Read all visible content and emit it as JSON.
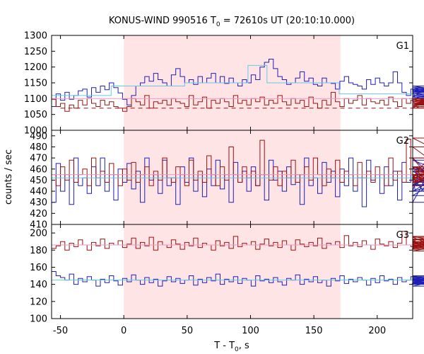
{
  "chart_data": {
    "type": "line",
    "title": {
      "prefix": "KONUS-WIND 990516 T",
      "sub": "0",
      "suffix": " = 72610s UT (20:10:10.000)"
    },
    "xlabel": {
      "prefix": "T - T",
      "sub": "0",
      "suffix": ", s"
    },
    "ylabel": "counts / sec",
    "x_range": [
      -57,
      228
    ],
    "x_ticks": [
      -50,
      0,
      50,
      100,
      150,
      200
    ],
    "shaded_interval": [
      0,
      171
    ],
    "colors": {
      "blue": "#1f1fb4",
      "red": "#9b1111",
      "cyan": "#67c7e6",
      "pink": "#e89ac4",
      "shade": "#ffe4e6"
    },
    "panels": [
      {
        "label": "G1",
        "ylim": [
          1000,
          1300
        ],
        "y_ticks": [
          1000,
          1050,
          1100,
          1150,
          1200,
          1250,
          1300
        ],
        "series": [
          {
            "color": "blue",
            "x0": -57,
            "dt": 3.5,
            "values": [
              1075,
              1115,
              1095,
              1120,
              1098,
              1110,
              1125,
              1130,
              1105,
              1135,
              1120,
              1140,
              1128,
              1150,
              1135,
              1118,
              1098,
              1080,
              1110,
              1140,
              1150,
              1170,
              1155,
              1180,
              1160,
              1150,
              1140,
              1175,
              1195,
              1170,
              1150,
              1160,
              1145,
              1170,
              1150,
              1165,
              1180,
              1150,
              1170,
              1148,
              1165,
              1150,
              1140,
              1160,
              1150,
              1175,
              1160,
              1200,
              1215,
              1225,
              1195,
              1170,
              1160,
              1145,
              1150,
              1165,
              1185,
              1155,
              1165,
              1145,
              1140,
              1165,
              1150,
              1148,
              1130,
              1155,
              1170,
              1150,
              1145,
              1140,
              1130,
              1160,
              1145,
              1165,
              1150,
              1140,
              1150,
              1185,
              1150,
              1120,
              1110,
              1130,
              1098,
              1105,
              1125,
              1120,
              1135,
              1115,
              1128,
              1115,
              1135,
              1125,
              1100,
              1110,
              1130,
              1120,
              1140,
              1110,
              1105,
              1120,
              1130,
              1110
            ]
          },
          {
            "color": "red",
            "x0": -57,
            "dt": 3.5,
            "values": [
              1098,
              1075,
              1085,
              1060,
              1080,
              1070,
              1095,
              1080,
              1100,
              1085,
              1075,
              1095,
              1080,
              1090,
              1075,
              1070,
              1060,
              1075,
              1100,
              1090,
              1080,
              1110,
              1070,
              1090,
              1085,
              1095,
              1080,
              1100,
              1090,
              1085,
              1075,
              1110,
              1080,
              1090,
              1105,
              1070,
              1095,
              1085,
              1100,
              1090,
              1075,
              1110,
              1085,
              1095,
              1080,
              1100,
              1090,
              1105,
              1080,
              1095,
              1085,
              1110,
              1090,
              1080,
              1100,
              1085,
              1095,
              1075,
              1105,
              1085,
              1070,
              1095,
              1080,
              1120,
              1090,
              1075,
              1100,
              1085,
              1095,
              1110,
              1080,
              1100,
              1090,
              1085,
              1095,
              1080,
              1105,
              1090,
              1075,
              1100,
              1085,
              1095,
              1080,
              1070,
              1090,
              1100,
              1080,
              1095,
              1085,
              1075,
              1100,
              1090,
              1080,
              1095,
              1085,
              1100,
              1080,
              1090,
              1085,
              1070,
              1080,
              1075
            ]
          },
          {
            "color": "cyan",
            "style": "step",
            "points": [
              [
                -57,
                1110
              ],
              [
                -10,
                1110
              ],
              [
                -10,
                1140
              ],
              [
                48,
                1140
              ],
              [
                48,
                1150
              ],
              [
                98,
                1150
              ],
              [
                98,
                1205
              ],
              [
                113,
                1205
              ],
              [
                113,
                1150
              ],
              [
                170,
                1150
              ],
              [
                170,
                1115
              ],
              [
                228,
                1115
              ]
            ]
          },
          {
            "color": "pink",
            "style": "step",
            "points": [
              [
                -57,
                1100
              ],
              [
                228,
                1100
              ]
            ]
          },
          {
            "color": "red",
            "style": "dashed",
            "points": [
              [
                -50,
                1070
              ],
              [
                228,
                1070
              ]
            ]
          }
        ]
      },
      {
        "label": "G2",
        "ylim": [
          410,
          495
        ],
        "y_ticks": [
          410,
          420,
          430,
          440,
          450,
          460,
          470,
          480,
          490
        ],
        "series": [
          {
            "color": "blue",
            "x0": -57,
            "dt": 3.5,
            "values": [
              430,
              465,
              440,
              455,
              428,
              470,
              445,
              452,
              438,
              462,
              445,
              470,
              440,
              455,
              432,
              460,
              448,
              465,
              442,
              458,
              430,
              470,
              450,
              455,
              438,
              468,
              445,
              452,
              428,
              462,
              448,
              470,
              440,
              455,
              435,
              460,
              445,
              468,
              442,
              455,
              430,
              466,
              448,
              458,
              440,
              462,
              445,
              455,
              432,
              468,
              450,
              458,
              440,
              462,
              446,
              455,
              428,
              470,
              445,
              452,
              438,
              466,
              448,
              458,
              435,
              460,
              445,
              470,
              440,
              452,
              426,
              468,
              450,
              455,
              438,
              462,
              445,
              458,
              432,
              466,
              448,
              455,
              440,
              462,
              445,
              452,
              430,
              470,
              446,
              458,
              440,
              462,
              448,
              455,
              436,
              468,
              445,
              452,
              440,
              460,
              448,
              455
            ]
          },
          {
            "color": "red",
            "x0": -57,
            "dt": 3.5,
            "values": [
              455,
              445,
              462,
              450,
              468,
              448,
              455,
              460,
              445,
              470,
              452,
              458,
              448,
              465,
              455,
              445,
              460,
              450,
              466,
              448,
              455,
              462,
              445,
              458,
              450,
              470,
              452,
              448,
              462,
              455,
              445,
              468,
              450,
              458,
              448,
              472,
              455,
              445,
              462,
              450,
              480,
              455,
              448,
              462,
              452,
              458,
              445,
              486,
              455,
              450,
              462,
              445,
              458,
              452,
              468,
              448,
              455,
              462,
              450,
              470,
              455,
              445,
              460,
              452,
              468,
              448,
              458,
              455,
              445,
              466,
              452,
              458,
              448,
              462,
              455,
              445,
              470,
              450,
              458,
              448,
              487,
              455,
              450,
              462,
              452,
              470,
              448,
              458,
              455,
              445,
              480,
              452,
              462,
              448,
              458,
              455,
              450,
              488,
              455,
              462,
              450,
              458
            ]
          },
          {
            "color": "cyan",
            "style": "step",
            "points": [
              [
                -57,
                452
              ],
              [
                228,
                452
              ]
            ]
          },
          {
            "color": "pink",
            "style": "step",
            "points": [
              [
                -57,
                455
              ],
              [
                228,
                455
              ]
            ]
          }
        ]
      },
      {
        "label": "G3",
        "ylim": [
          100,
          210
        ],
        "y_ticks": [
          100,
          120,
          140,
          160,
          180,
          200
        ],
        "series": [
          {
            "color": "blue",
            "x0": -57,
            "dt": 3.5,
            "values": [
              155,
              150,
              148,
              145,
              152,
              140,
              147,
              143,
              149,
              145,
              138,
              146,
              142,
              150,
              144,
              139,
              147,
              143,
              151,
              145,
              140,
              148,
              142,
              146,
              138,
              144,
              149,
              143,
              147,
              141,
              145,
              150,
              139,
              146,
              142,
              148,
              144,
              152,
              140,
              146,
              143,
              149,
              141,
              147,
              145,
              138,
              150,
              144,
              146,
              142,
              148,
              143,
              139,
              147,
              145,
              151,
              140,
              146,
              143,
              149,
              142,
              145,
              138,
              147,
              144,
              150,
              141,
              146,
              143,
              148,
              145,
              139,
              147,
              142,
              150,
              144,
              146,
              140,
              148,
              143,
              145,
              149,
              141,
              147,
              142,
              146,
              138,
              144,
              150,
              143,
              147,
              141,
              145,
              149,
              142,
              146,
              143,
              140,
              148,
              145,
              142,
              146
            ]
          },
          {
            "color": "red",
            "x0": -57,
            "dt": 3.5,
            "values": [
              182,
              185,
              190,
              180,
              188,
              184,
              192,
              186,
              180,
              189,
              185,
              193,
              182,
              188,
              186,
              191,
              183,
              187,
              194,
              182,
              189,
              185,
              195,
              180,
              190,
              186,
              183,
              192,
              187,
              181,
              189,
              185,
              194,
              183,
              188,
              186,
              180,
              191,
              185,
              189,
              182,
              196,
              184,
              188,
              186,
              190,
              181,
              187,
              193,
              185,
              189,
              183,
              191,
              186,
              180,
              192,
              187,
              184,
              189,
              185,
              194,
              182,
              188,
              186,
              190,
              183,
              197,
              185,
              189,
              184,
              191,
              186,
              181,
              193,
              187,
              185,
              190,
              183,
              188,
              202,
              186,
              184,
              191,
              187,
              182,
              195,
              185,
              189,
              183,
              190,
              186,
              181,
              196,
              184,
              188,
              186,
              179,
              193,
              187,
              192,
              190,
              186
            ]
          },
          {
            "color": "cyan",
            "style": "step",
            "points": [
              [
                -57,
                145
              ],
              [
                228,
                145
              ]
            ]
          },
          {
            "color": "pink",
            "style": "step",
            "points": [
              [
                -57,
                186
              ],
              [
                228,
                186
              ]
            ]
          }
        ]
      }
    ]
  }
}
